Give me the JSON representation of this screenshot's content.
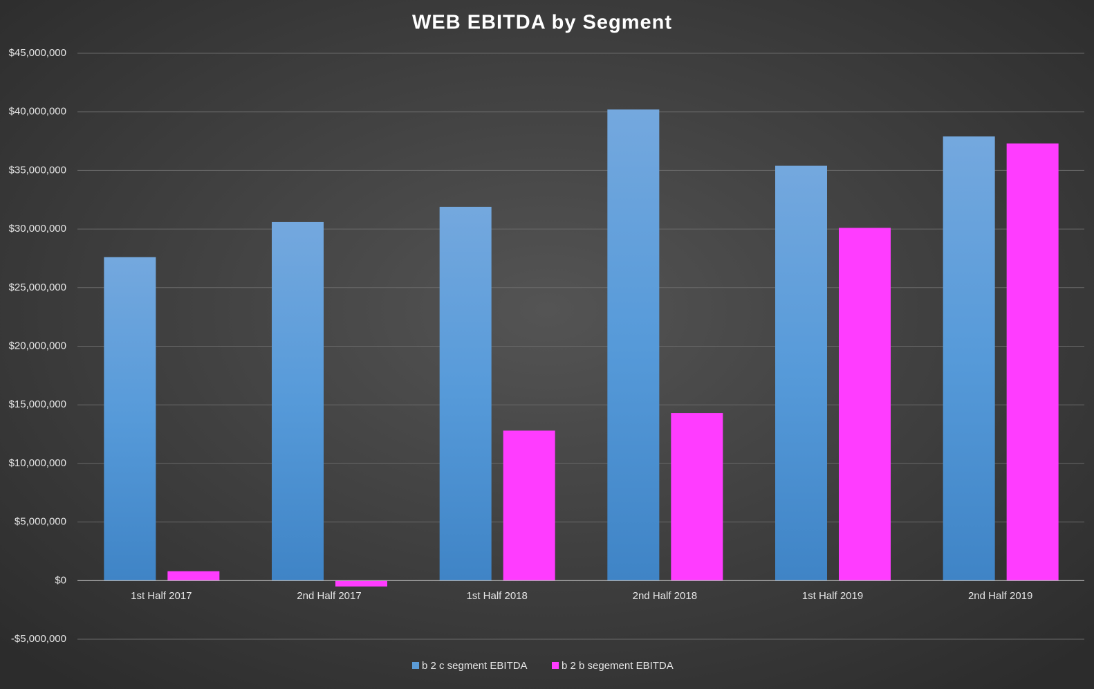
{
  "chart_data": {
    "type": "bar",
    "title": "WEB EBITDA by Segment",
    "categories": [
      "1st Half 2017",
      "2nd Half 2017",
      "1st Half 2018",
      "2nd Half 2018",
      "1st Half 2019",
      "2nd Half 2019"
    ],
    "series": [
      {
        "name": "b 2 c segment EBITDA",
        "color": "#5b9bd5",
        "values": [
          27600000,
          30600000,
          31900000,
          40200000,
          35400000,
          37900000
        ]
      },
      {
        "name": "b 2 b segement EBITDA",
        "color": "#ff3cff",
        "values": [
          800000,
          -500000,
          12800000,
          14300000,
          30100000,
          37300000
        ]
      }
    ],
    "ylim": [
      -5000000,
      45000000
    ],
    "yticks": [
      {
        "value": -5000000,
        "label": "-$5,000,000"
      },
      {
        "value": 0,
        "label": "$0"
      },
      {
        "value": 5000000,
        "label": "$5,000,000"
      },
      {
        "value": 10000000,
        "label": "$10,000,000"
      },
      {
        "value": 15000000,
        "label": "$15,000,000"
      },
      {
        "value": 20000000,
        "label": "$20,000,000"
      },
      {
        "value": 25000000,
        "label": "$25,000,000"
      },
      {
        "value": 30000000,
        "label": "$30,000,000"
      },
      {
        "value": 35000000,
        "label": "$35,000,000"
      },
      {
        "value": 40000000,
        "label": "$40,000,000"
      },
      {
        "value": 45000000,
        "label": "$45,000,000"
      }
    ],
    "grid": true,
    "legend": "bottom"
  }
}
